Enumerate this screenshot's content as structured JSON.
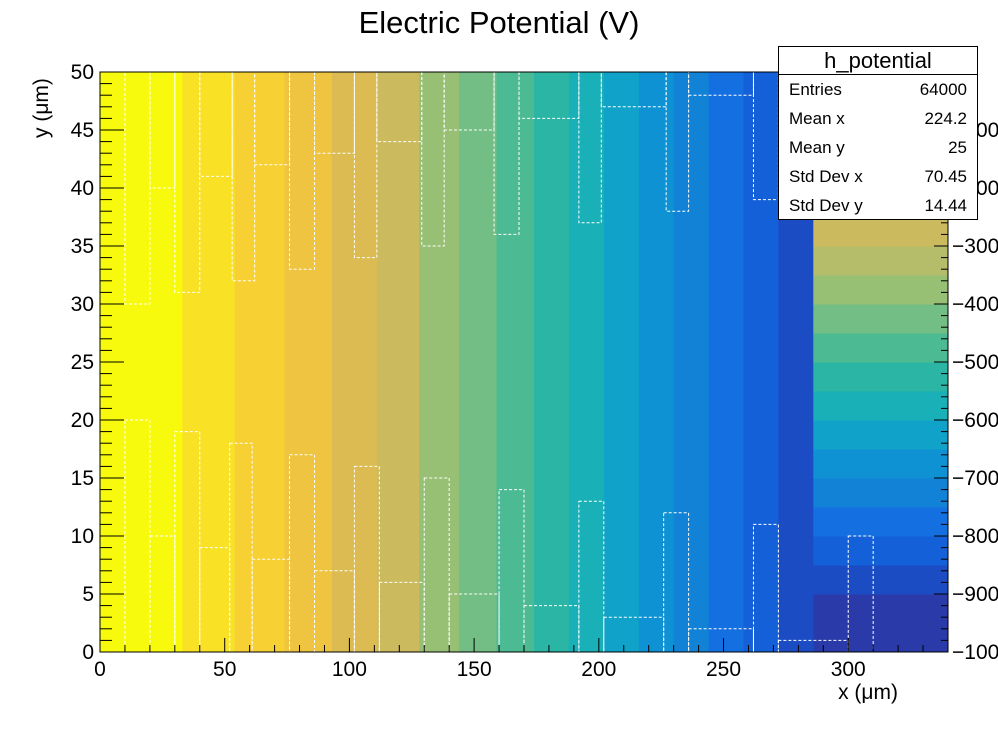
{
  "chart_data": {
    "type": "heatmap",
    "title": "Electric Potential (V)",
    "xlabel": "x (μm)",
    "ylabel": "y (μm)",
    "xlim": [
      0,
      340
    ],
    "ylim": [
      0,
      50
    ],
    "zlim": [
      -1000,
      0
    ],
    "x_ticks": [
      0,
      50,
      100,
      150,
      200,
      250,
      300
    ],
    "y_ticks": [
      0,
      5,
      10,
      15,
      20,
      25,
      30,
      35,
      40,
      45,
      50
    ],
    "z_ticks_right": [
      "−1000",
      "−900",
      "−800",
      "−700",
      "−600",
      "−500",
      "−400",
      "−300",
      "−200",
      "−100"
    ],
    "x_bands": [
      {
        "x0": 0,
        "x1": 33,
        "potential": -20
      },
      {
        "x0": 33,
        "x1": 54,
        "potential": -80
      },
      {
        "x0": 54,
        "x1": 74,
        "potential": -140
      },
      {
        "x0": 74,
        "x1": 93,
        "potential": -200
      },
      {
        "x0": 93,
        "x1": 111,
        "potential": -260
      },
      {
        "x0": 111,
        "x1": 128,
        "potential": -320
      },
      {
        "x0": 128,
        "x1": 144,
        "potential": -380
      },
      {
        "x0": 144,
        "x1": 159,
        "potential": -440
      },
      {
        "x0": 159,
        "x1": 174,
        "potential": -500
      },
      {
        "x0": 174,
        "x1": 188,
        "potential": -560
      },
      {
        "x0": 188,
        "x1": 202,
        "potential": -620
      },
      {
        "x0": 202,
        "x1": 216,
        "potential": -660
      },
      {
        "x0": 216,
        "x1": 230,
        "potential": -700
      },
      {
        "x0": 230,
        "x1": 244,
        "potential": -740
      },
      {
        "x0": 244,
        "x1": 258,
        "potential": -780
      },
      {
        "x0": 258,
        "x1": 272,
        "potential": -830
      },
      {
        "x0": 272,
        "x1": 286,
        "potential": -880
      }
    ],
    "palette_levels": [
      {
        "z": -1000,
        "color": "#2a3aa8"
      },
      {
        "z": -900,
        "color": "#1c4cc4"
      },
      {
        "z": -850,
        "color": "#1460d8"
      },
      {
        "z": -800,
        "color": "#146fe0"
      },
      {
        "z": -750,
        "color": "#1282d6"
      },
      {
        "z": -700,
        "color": "#0f92d4"
      },
      {
        "z": -650,
        "color": "#10a2c8"
      },
      {
        "z": -600,
        "color": "#1ab0b8"
      },
      {
        "z": -550,
        "color": "#2bb5a4"
      },
      {
        "z": -500,
        "color": "#4cbb94"
      },
      {
        "z": -450,
        "color": "#72be84"
      },
      {
        "z": -400,
        "color": "#97c074"
      },
      {
        "z": -350,
        "color": "#b6bd6a"
      },
      {
        "z": -300,
        "color": "#ccbb5e"
      },
      {
        "z": -250,
        "color": "#dcbc52"
      },
      {
        "z": -200,
        "color": "#eec440"
      },
      {
        "z": -150,
        "color": "#f7d033"
      },
      {
        "z": -100,
        "color": "#f9e226"
      },
      {
        "z": -50,
        "color": "#f7f41a"
      },
      {
        "z": 0,
        "color": "#f8fa0e"
      }
    ],
    "electrodes_top": [
      {
        "x0": 10,
        "x1": 20,
        "y0": 30,
        "y1": 50
      },
      {
        "x0": 20,
        "x1": 30,
        "y0": 40,
        "y1": 50
      },
      {
        "x0": 30,
        "x1": 40,
        "y0": 31,
        "y1": 50
      },
      {
        "x0": 40,
        "x1": 53,
        "y0": 41,
        "y1": 50
      },
      {
        "x0": 53,
        "x1": 62,
        "y0": 32,
        "y1": 50
      },
      {
        "x0": 62,
        "x1": 76,
        "y0": 42,
        "y1": 50
      },
      {
        "x0": 76,
        "x1": 86,
        "y0": 33,
        "y1": 50
      },
      {
        "x0": 86,
        "x1": 102,
        "y0": 43,
        "y1": 50
      },
      {
        "x0": 102,
        "x1": 111,
        "y0": 34,
        "y1": 50
      },
      {
        "x0": 111,
        "x1": 129,
        "y0": 44,
        "y1": 50
      },
      {
        "x0": 129,
        "x1": 138,
        "y0": 35,
        "y1": 50
      },
      {
        "x0": 138,
        "x1": 158,
        "y0": 45,
        "y1": 50
      },
      {
        "x0": 158,
        "x1": 168,
        "y0": 36,
        "y1": 50
      },
      {
        "x0": 168,
        "x1": 192,
        "y0": 46,
        "y1": 50
      },
      {
        "x0": 192,
        "x1": 201,
        "y0": 37,
        "y1": 50
      },
      {
        "x0": 201,
        "x1": 227,
        "y0": 47,
        "y1": 50
      },
      {
        "x0": 227,
        "x1": 236,
        "y0": 38,
        "y1": 50
      },
      {
        "x0": 236,
        "x1": 262,
        "y0": 48,
        "y1": 50
      },
      {
        "x0": 262,
        "x1": 272,
        "y0": 39,
        "y1": 50
      }
    ],
    "electrodes_bottom": [
      {
        "x0": 10,
        "x1": 20,
        "y0": 0,
        "y1": 20
      },
      {
        "x0": 20,
        "x1": 30,
        "y0": 0,
        "y1": 10
      },
      {
        "x0": 30,
        "x1": 40,
        "y0": 0,
        "y1": 19
      },
      {
        "x0": 40,
        "x1": 52,
        "y0": 0,
        "y1": 9
      },
      {
        "x0": 52,
        "x1": 61,
        "y0": 0,
        "y1": 18
      },
      {
        "x0": 61,
        "x1": 76,
        "y0": 0,
        "y1": 8
      },
      {
        "x0": 76,
        "x1": 86,
        "y0": 0,
        "y1": 17
      },
      {
        "x0": 86,
        "x1": 102,
        "y0": 0,
        "y1": 7
      },
      {
        "x0": 102,
        "x1": 112,
        "y0": 0,
        "y1": 16
      },
      {
        "x0": 112,
        "x1": 130,
        "y0": 0,
        "y1": 6
      },
      {
        "x0": 130,
        "x1": 140,
        "y0": 0,
        "y1": 15
      },
      {
        "x0": 140,
        "x1": 160,
        "y0": 0,
        "y1": 5
      },
      {
        "x0": 160,
        "x1": 170,
        "y0": 0,
        "y1": 14
      },
      {
        "x0": 170,
        "x1": 192,
        "y0": 0,
        "y1": 4
      },
      {
        "x0": 192,
        "x1": 202,
        "y0": 0,
        "y1": 13
      },
      {
        "x0": 202,
        "x1": 226,
        "y0": 0,
        "y1": 3
      },
      {
        "x0": 226,
        "x1": 236,
        "y0": 0,
        "y1": 12
      },
      {
        "x0": 236,
        "x1": 262,
        "y0": 0,
        "y1": 2
      },
      {
        "x0": 262,
        "x1": 272,
        "y0": 0,
        "y1": 11
      },
      {
        "x0": 272,
        "x1": 300,
        "y0": 0,
        "y1": 1
      },
      {
        "x0": 300,
        "x1": 310,
        "y0": 0,
        "y1": 10
      }
    ],
    "grid": false
  },
  "stats": {
    "name": "h_potential",
    "rows": [
      {
        "label": "Entries",
        "value": "64000"
      },
      {
        "label": "Mean x",
        "value": "224.2"
      },
      {
        "label": "Mean y",
        "value": "25"
      },
      {
        "label": "Std Dev x",
        "value": "70.45"
      },
      {
        "label": "Std Dev y",
        "value": "14.44"
      }
    ]
  }
}
